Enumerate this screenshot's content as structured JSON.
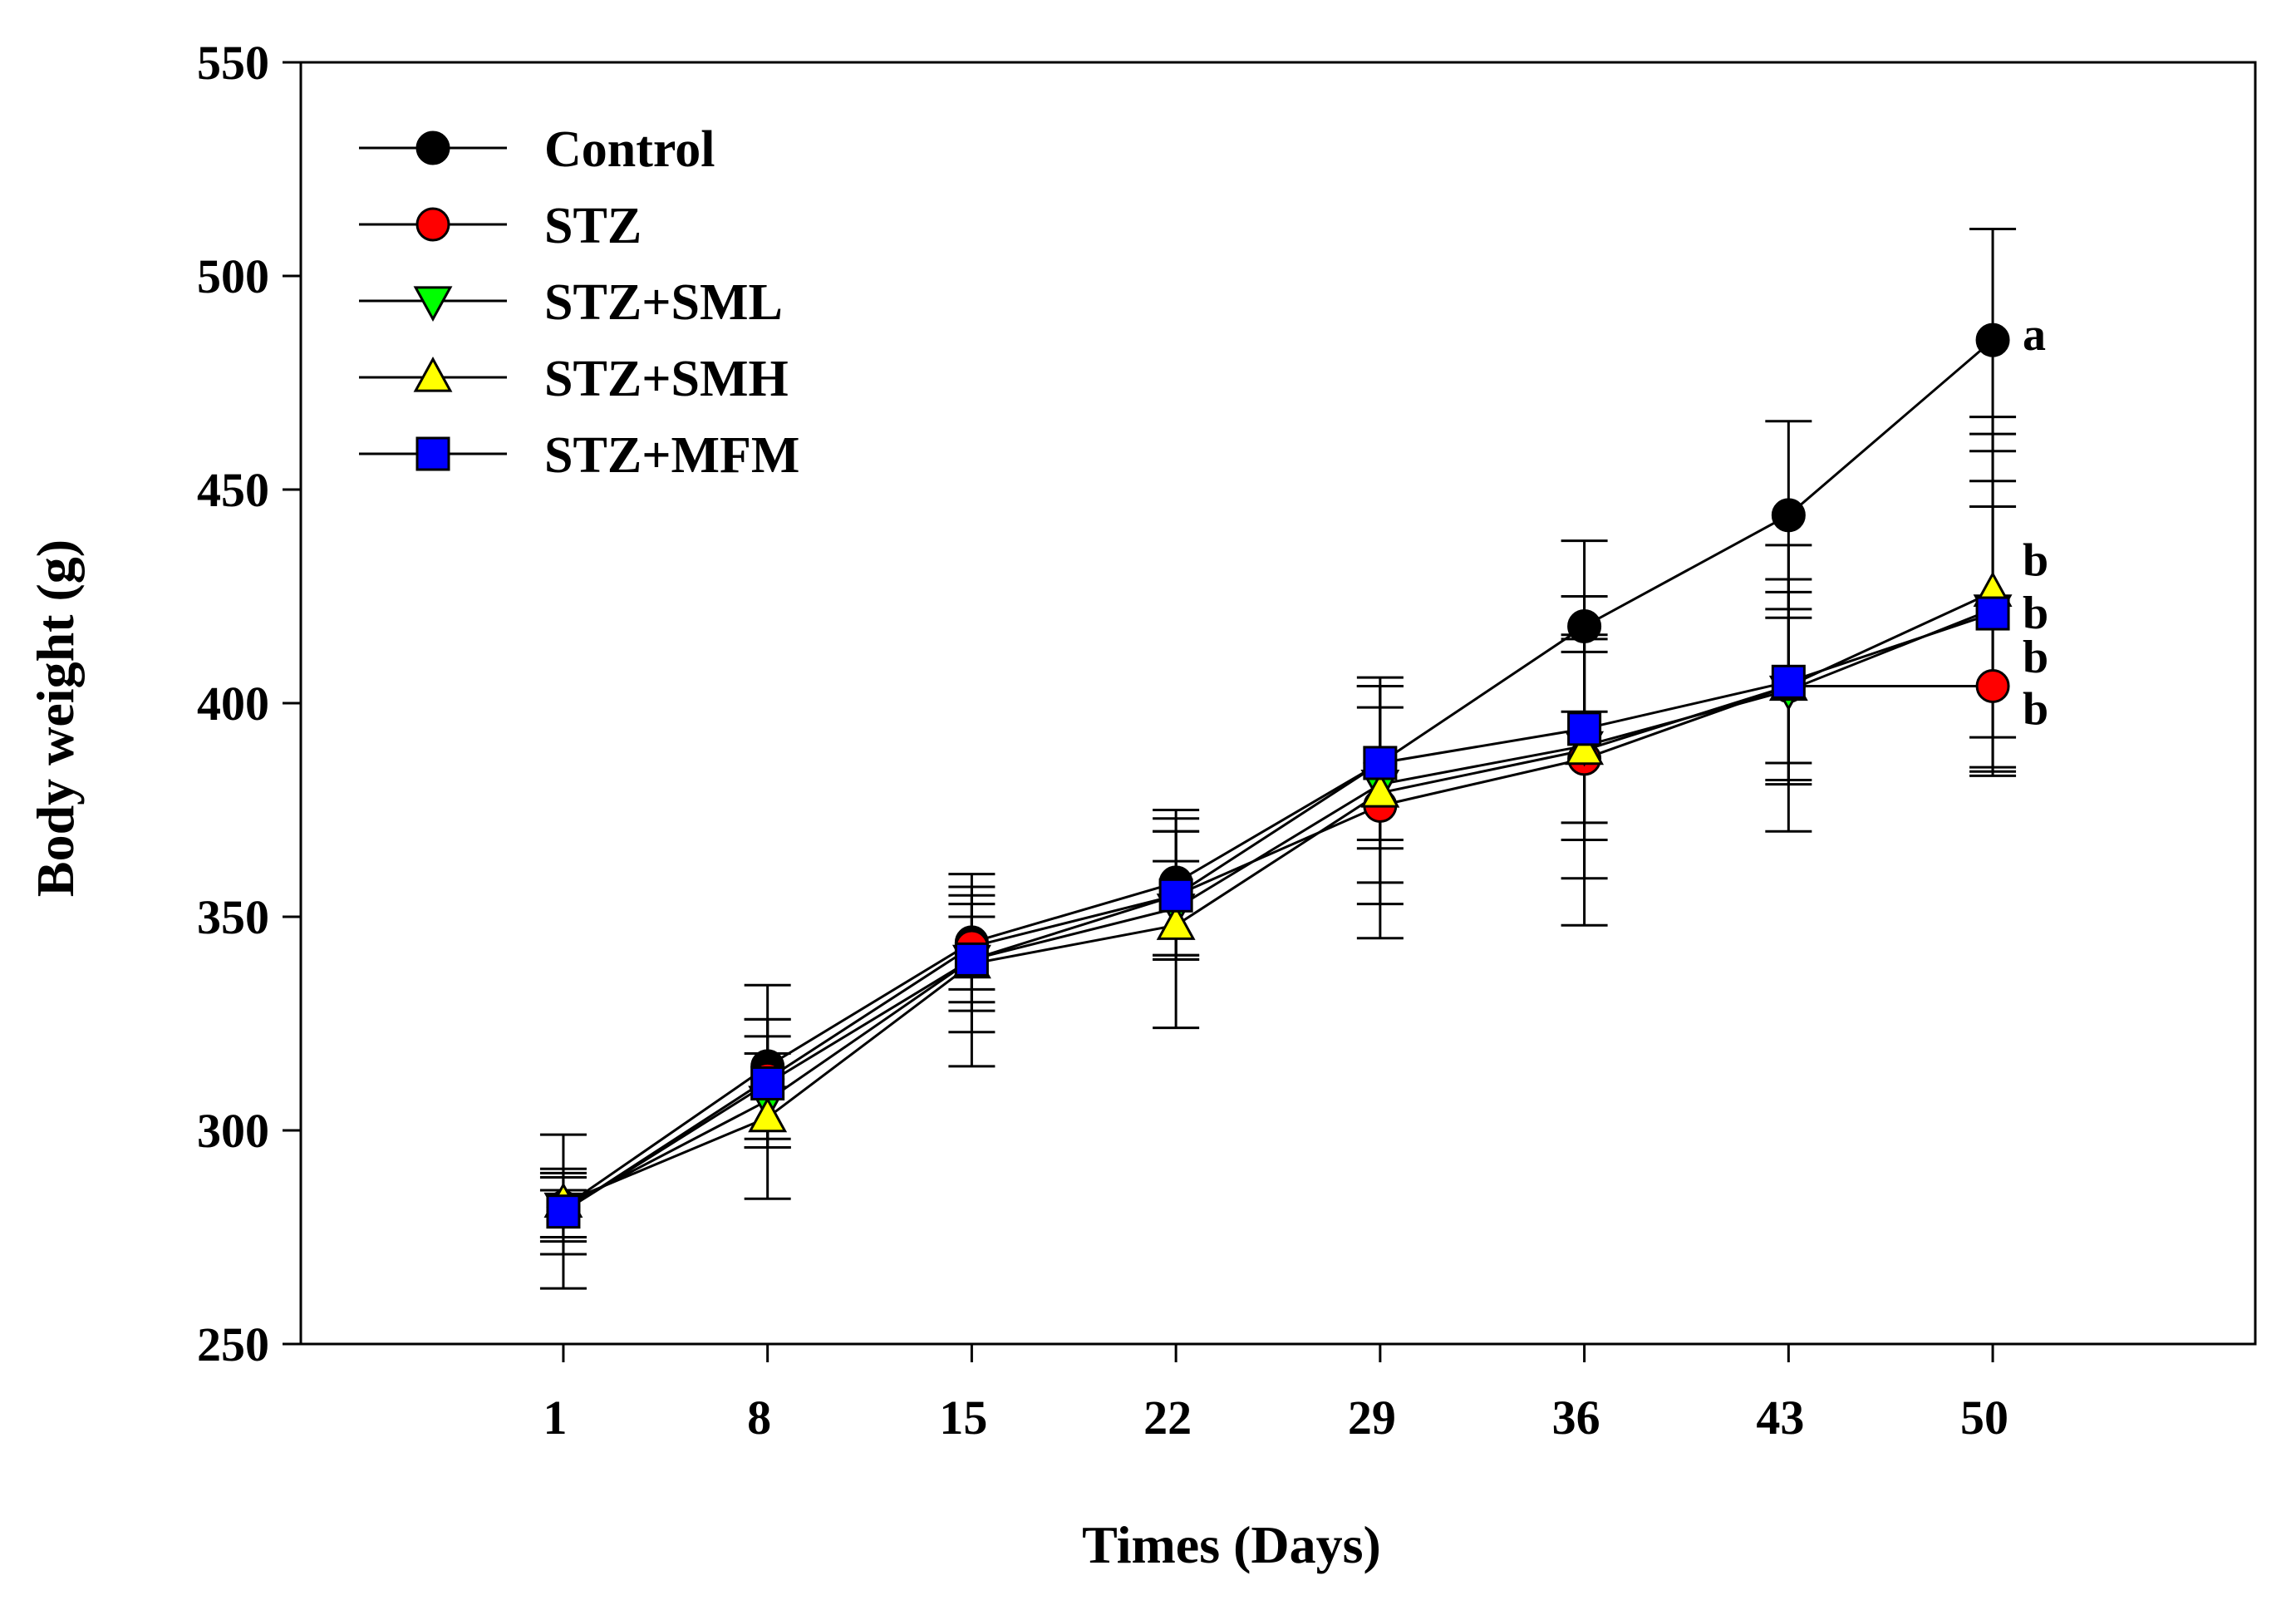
{
  "chart_data": {
    "type": "line",
    "title": "",
    "xlabel": "Times (Days)",
    "ylabel": "Body weight (g)",
    "x": [
      1,
      8,
      15,
      22,
      29,
      36,
      43,
      50
    ],
    "x_tick_labels": [
      "1",
      "8",
      "15",
      "22",
      "29",
      "36",
      "43",
      "50"
    ],
    "xlim": [
      -8,
      59
    ],
    "ylim": [
      250,
      550
    ],
    "y_ticks": [
      250,
      300,
      350,
      400,
      450,
      500,
      550
    ],
    "y_tick_labels": [
      "250",
      "300",
      "350",
      "400",
      "450",
      "500",
      "550"
    ],
    "grid": false,
    "legend_position": "top-left",
    "series": [
      {
        "name": "Control",
        "marker": "circle",
        "color": "#000000",
        "values": [
          282,
          315,
          344,
          358,
          386,
          418,
          444,
          485
        ],
        "error_upper": [
          289,
          334,
          360,
          375,
          406,
          438,
          466,
          511
        ],
        "error_lower": [
          275,
          296,
          328,
          341,
          366,
          398,
          422,
          459
        ],
        "significance": "a"
      },
      {
        "name": "STZ",
        "marker": "circle",
        "color": "#ff0000",
        "values": [
          281,
          312,
          343,
          355,
          376,
          387,
          404,
          404
        ],
        "error_upper": [
          286,
          326,
          353,
          370,
          399,
          415,
          426,
          446
        ],
        "error_lower": [
          275,
          298,
          333,
          340,
          353,
          359,
          382,
          383
        ],
        "significance": "b"
      },
      {
        "name": "STZ+SML",
        "marker": "triangle-down",
        "color": "#00ff00",
        "values": [
          282,
          307,
          340,
          352,
          381,
          390,
          403,
          422
        ],
        "error_upper": [
          290,
          318,
          350,
          363,
          404,
          412,
          420,
          452
        ],
        "error_lower": [
          274,
          296,
          330,
          341,
          358,
          368,
          386,
          392
        ],
        "significance": "b"
      },
      {
        "name": "STZ+SMH",
        "marker": "triangle-up",
        "color": "#ffff00",
        "values": [
          283,
          303,
          339,
          348,
          379,
          389,
          404,
          426
        ],
        "error_upper": [
          299,
          322,
          355,
          373,
          404,
          425,
          437,
          467
        ],
        "error_lower": [
          263,
          284,
          315,
          324,
          345,
          348,
          370,
          385
        ],
        "significance": "b"
      },
      {
        "name": "STZ+MFM",
        "marker": "square",
        "color": "#0000ff",
        "values": [
          281,
          311,
          340,
          355,
          386,
          394,
          405,
          421
        ],
        "error_upper": [
          291,
          326,
          357,
          370,
          404,
          416,
          429,
          463
        ],
        "error_lower": [
          271,
          296,
          323,
          340,
          368,
          372,
          381,
          384
        ],
        "significance": "b"
      }
    ],
    "annotations": [
      "a",
      "b",
      "b",
      "b",
      "b"
    ]
  }
}
